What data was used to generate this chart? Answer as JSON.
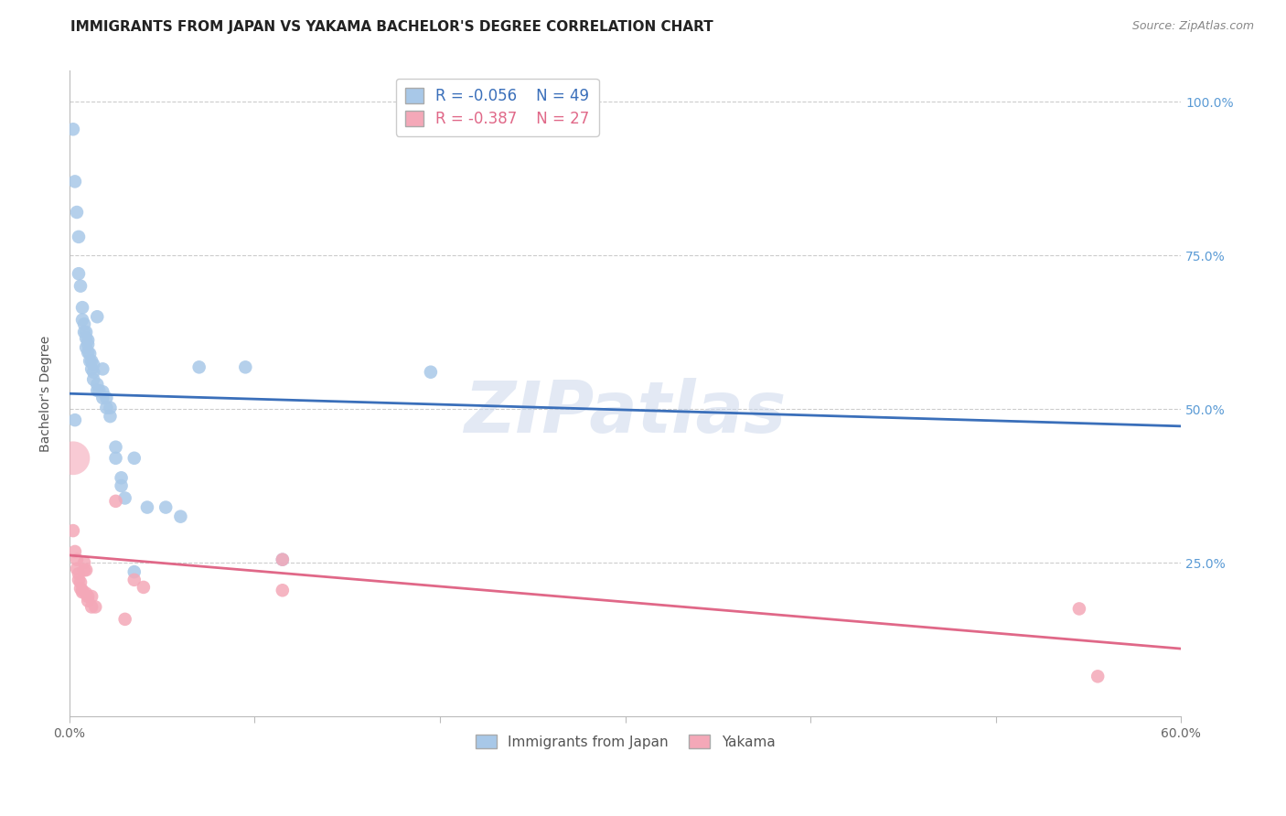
{
  "title": "IMMIGRANTS FROM JAPAN VS YAKAMA BACHELOR'S DEGREE CORRELATION CHART",
  "source": "Source: ZipAtlas.com",
  "ylabel": "Bachelor's Degree",
  "xmin": 0.0,
  "xmax": 0.6,
  "ymin": 0.0,
  "ymax": 1.05,
  "yticks": [
    0.0,
    0.25,
    0.5,
    0.75,
    1.0
  ],
  "ytick_labels": [
    "",
    "25.0%",
    "50.0%",
    "75.0%",
    "100.0%"
  ],
  "xticks": [
    0.0,
    0.1,
    0.2,
    0.3,
    0.4,
    0.5,
    0.6
  ],
  "xtick_labels": [
    "0.0%",
    "",
    "",
    "",
    "",
    "",
    "60.0%"
  ],
  "watermark": "ZIPatlas",
  "legend_blue_r": "-0.056",
  "legend_blue_n": "49",
  "legend_pink_r": "-0.387",
  "legend_pink_n": "27",
  "legend_label_blue": "Immigrants from Japan",
  "legend_label_pink": "Yakama",
  "blue_color": "#a8c8e8",
  "pink_color": "#f4a8b8",
  "blue_line_color": "#3a6fba",
  "pink_line_color": "#e06888",
  "blue_scatter": [
    [
      0.002,
      0.955
    ],
    [
      0.003,
      0.87
    ],
    [
      0.004,
      0.82
    ],
    [
      0.005,
      0.78
    ],
    [
      0.005,
      0.72
    ],
    [
      0.006,
      0.7
    ],
    [
      0.007,
      0.665
    ],
    [
      0.007,
      0.645
    ],
    [
      0.008,
      0.638
    ],
    [
      0.008,
      0.625
    ],
    [
      0.009,
      0.625
    ],
    [
      0.009,
      0.615
    ],
    [
      0.009,
      0.6
    ],
    [
      0.01,
      0.612
    ],
    [
      0.01,
      0.605
    ],
    [
      0.01,
      0.592
    ],
    [
      0.011,
      0.59
    ],
    [
      0.011,
      0.578
    ],
    [
      0.012,
      0.578
    ],
    [
      0.012,
      0.565
    ],
    [
      0.013,
      0.572
    ],
    [
      0.013,
      0.56
    ],
    [
      0.013,
      0.548
    ],
    [
      0.015,
      0.65
    ],
    [
      0.015,
      0.54
    ],
    [
      0.015,
      0.53
    ],
    [
      0.016,
      0.53
    ],
    [
      0.018,
      0.565
    ],
    [
      0.018,
      0.528
    ],
    [
      0.018,
      0.518
    ],
    [
      0.02,
      0.518
    ],
    [
      0.02,
      0.502
    ],
    [
      0.022,
      0.502
    ],
    [
      0.022,
      0.488
    ],
    [
      0.025,
      0.42
    ],
    [
      0.025,
      0.438
    ],
    [
      0.028,
      0.388
    ],
    [
      0.028,
      0.375
    ],
    [
      0.03,
      0.355
    ],
    [
      0.035,
      0.42
    ],
    [
      0.035,
      0.235
    ],
    [
      0.042,
      0.34
    ],
    [
      0.052,
      0.34
    ],
    [
      0.06,
      0.325
    ],
    [
      0.07,
      0.568
    ],
    [
      0.095,
      0.568
    ],
    [
      0.115,
      0.255
    ],
    [
      0.195,
      0.56
    ],
    [
      0.003,
      0.482
    ]
  ],
  "pink_scatter": [
    [
      0.002,
      0.302
    ],
    [
      0.003,
      0.268
    ],
    [
      0.004,
      0.255
    ],
    [
      0.004,
      0.24
    ],
    [
      0.005,
      0.232
    ],
    [
      0.005,
      0.222
    ],
    [
      0.006,
      0.218
    ],
    [
      0.006,
      0.208
    ],
    [
      0.007,
      0.205
    ],
    [
      0.007,
      0.202
    ],
    [
      0.008,
      0.25
    ],
    [
      0.008,
      0.238
    ],
    [
      0.009,
      0.238
    ],
    [
      0.009,
      0.2
    ],
    [
      0.01,
      0.195
    ],
    [
      0.01,
      0.188
    ],
    [
      0.012,
      0.195
    ],
    [
      0.012,
      0.178
    ],
    [
      0.014,
      0.178
    ],
    [
      0.025,
      0.35
    ],
    [
      0.03,
      0.158
    ],
    [
      0.035,
      0.222
    ],
    [
      0.04,
      0.21
    ],
    [
      0.115,
      0.255
    ],
    [
      0.115,
      0.205
    ],
    [
      0.545,
      0.175
    ],
    [
      0.555,
      0.065
    ]
  ],
  "blue_line_x": [
    0.0,
    0.6
  ],
  "blue_line_y": [
    0.525,
    0.472
  ],
  "pink_line_x": [
    0.0,
    0.6
  ],
  "pink_line_y": [
    0.262,
    0.11
  ],
  "large_pink_dot": [
    0.002,
    0.42
  ],
  "large_pink_dot_size": 700,
  "background_color": "#ffffff",
  "grid_color": "#cccccc",
  "title_fontsize": 11,
  "label_fontsize": 10,
  "tick_fontsize": 10,
  "source_fontsize": 9,
  "right_tick_color": "#5b9bd5"
}
